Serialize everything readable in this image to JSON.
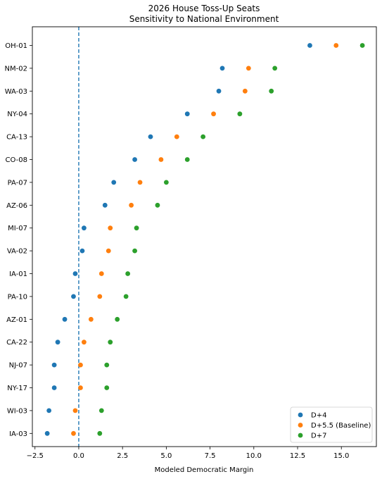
{
  "chart_data": {
    "type": "scatter",
    "title": "2026 House Toss-Up Seats",
    "subtitle": "Sensitivity to National Environment",
    "xlabel": "Modeled Democratic Margin",
    "ylabel": "",
    "xlim": [
      -2.65,
      17.0
    ],
    "xticks": [
      -2.5,
      0.0,
      2.5,
      5.0,
      7.5,
      10.0,
      12.5,
      15.0
    ],
    "xtick_labels": [
      "−2.5",
      "0.0",
      "2.5",
      "5.0",
      "7.5",
      "10.0",
      "12.5",
      "15.0"
    ],
    "categories": [
      "OH-01",
      "NM-02",
      "WA-03",
      "NY-04",
      "CA-13",
      "CO-08",
      "PA-07",
      "AZ-06",
      "MI-07",
      "VA-02",
      "IA-01",
      "PA-10",
      "AZ-01",
      "CA-22",
      "NJ-07",
      "NY-17",
      "WI-03",
      "IA-03"
    ],
    "reference_line": {
      "x": 0,
      "style": "dashed",
      "color": "#1f77b4"
    },
    "series": [
      {
        "name": "D+4",
        "color": "#1f77b4",
        "values": [
          13.2,
          8.2,
          8.0,
          6.2,
          4.1,
          3.2,
          2.0,
          1.5,
          0.3,
          0.2,
          -0.2,
          -0.3,
          -0.8,
          -1.2,
          -1.4,
          -1.4,
          -1.7,
          -1.8
        ]
      },
      {
        "name": "D+5.5 (Baseline)",
        "color": "#ff7f0e",
        "values": [
          14.7,
          9.7,
          9.5,
          7.7,
          5.6,
          4.7,
          3.5,
          3.0,
          1.8,
          1.7,
          1.3,
          1.2,
          0.7,
          0.3,
          0.1,
          0.1,
          -0.2,
          -0.3
        ]
      },
      {
        "name": "D+7",
        "color": "#2ca02c",
        "values": [
          16.2,
          11.2,
          11.0,
          9.2,
          7.1,
          6.2,
          5.0,
          4.5,
          3.3,
          3.2,
          2.8,
          2.7,
          2.2,
          1.8,
          1.6,
          1.6,
          1.3,
          1.2
        ]
      }
    ],
    "legend_position": "lower right",
    "grid": false
  }
}
